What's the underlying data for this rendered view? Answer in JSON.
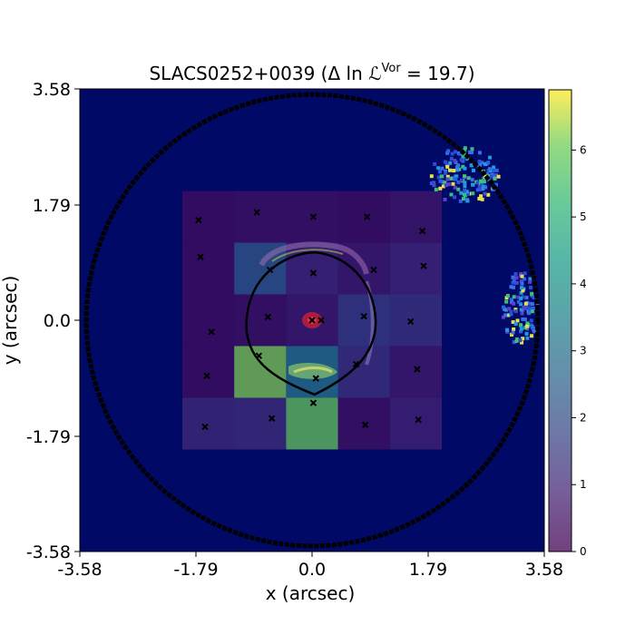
{
  "chart_data": {
    "type": "heatmap",
    "title": "SLACS0252+0039 (Δ ln ℒ",
    "title_superscript": "Vor",
    "title_suffix": " =  19.7)",
    "xlabel": "x (arcsec)",
    "ylabel": "y (arcsec)",
    "xlim": [
      -3.58,
      3.58
    ],
    "ylim": [
      -3.58,
      3.58
    ],
    "xticks": [
      "-3.58",
      "-1.79",
      "0.0",
      "1.79",
      "3.58"
    ],
    "yticks": [
      "3.58",
      "1.79",
      "0.0",
      "-1.79",
      "-3.58"
    ],
    "colorbar": {
      "range": [
        0,
        6.9
      ],
      "ticks": [
        "0",
        "1",
        "2",
        "3",
        "4",
        "5",
        "6"
      ],
      "colormap": "viridis (translucent)"
    },
    "background_color": "#000a66",
    "overlay_grid": {
      "x_edges": [
        -2.0,
        -1.2,
        -0.4,
        0.4,
        1.2,
        2.0
      ],
      "y_edges": [
        2.0,
        1.2,
        0.4,
        -0.4,
        -1.2,
        -2.0
      ],
      "values": [
        [
          0.3,
          0.4,
          0.4,
          0.3,
          0.5
        ],
        [
          0.3,
          2.3,
          0.9,
          0.6,
          0.9
        ],
        [
          0.3,
          0.4,
          0.6,
          1.5,
          1.3
        ],
        [
          0.3,
          6.2,
          3.2,
          1.2,
          0.6
        ],
        [
          1.0,
          1.1,
          6.0,
          0.4,
          0.8
        ]
      ]
    },
    "centers": [
      [
        -1.75,
        1.55
      ],
      [
        -0.85,
        1.67
      ],
      [
        0.02,
        1.6
      ],
      [
        0.85,
        1.6
      ],
      [
        1.7,
        1.38
      ],
      [
        -1.72,
        0.98
      ],
      [
        -0.65,
        0.78
      ],
      [
        0.02,
        0.73
      ],
      [
        0.95,
        0.78
      ],
      [
        1.72,
        0.84
      ],
      [
        -1.55,
        -0.18
      ],
      [
        -0.68,
        0.05
      ],
      [
        0.0,
        0.0
      ],
      [
        0.14,
        0.0
      ],
      [
        0.8,
        0.06
      ],
      [
        1.52,
        -0.02
      ],
      [
        -1.62,
        -0.86
      ],
      [
        -0.82,
        -0.55
      ],
      [
        0.06,
        -0.9
      ],
      [
        0.68,
        -0.68
      ],
      [
        1.62,
        -0.76
      ],
      [
        -1.65,
        -1.65
      ],
      [
        -0.62,
        -1.52
      ],
      [
        0.02,
        -1.28
      ],
      [
        0.82,
        -1.62
      ],
      [
        1.64,
        -1.54
      ]
    ],
    "critical_curve_color": "#000000",
    "mask_circle_radius": 3.48
  }
}
